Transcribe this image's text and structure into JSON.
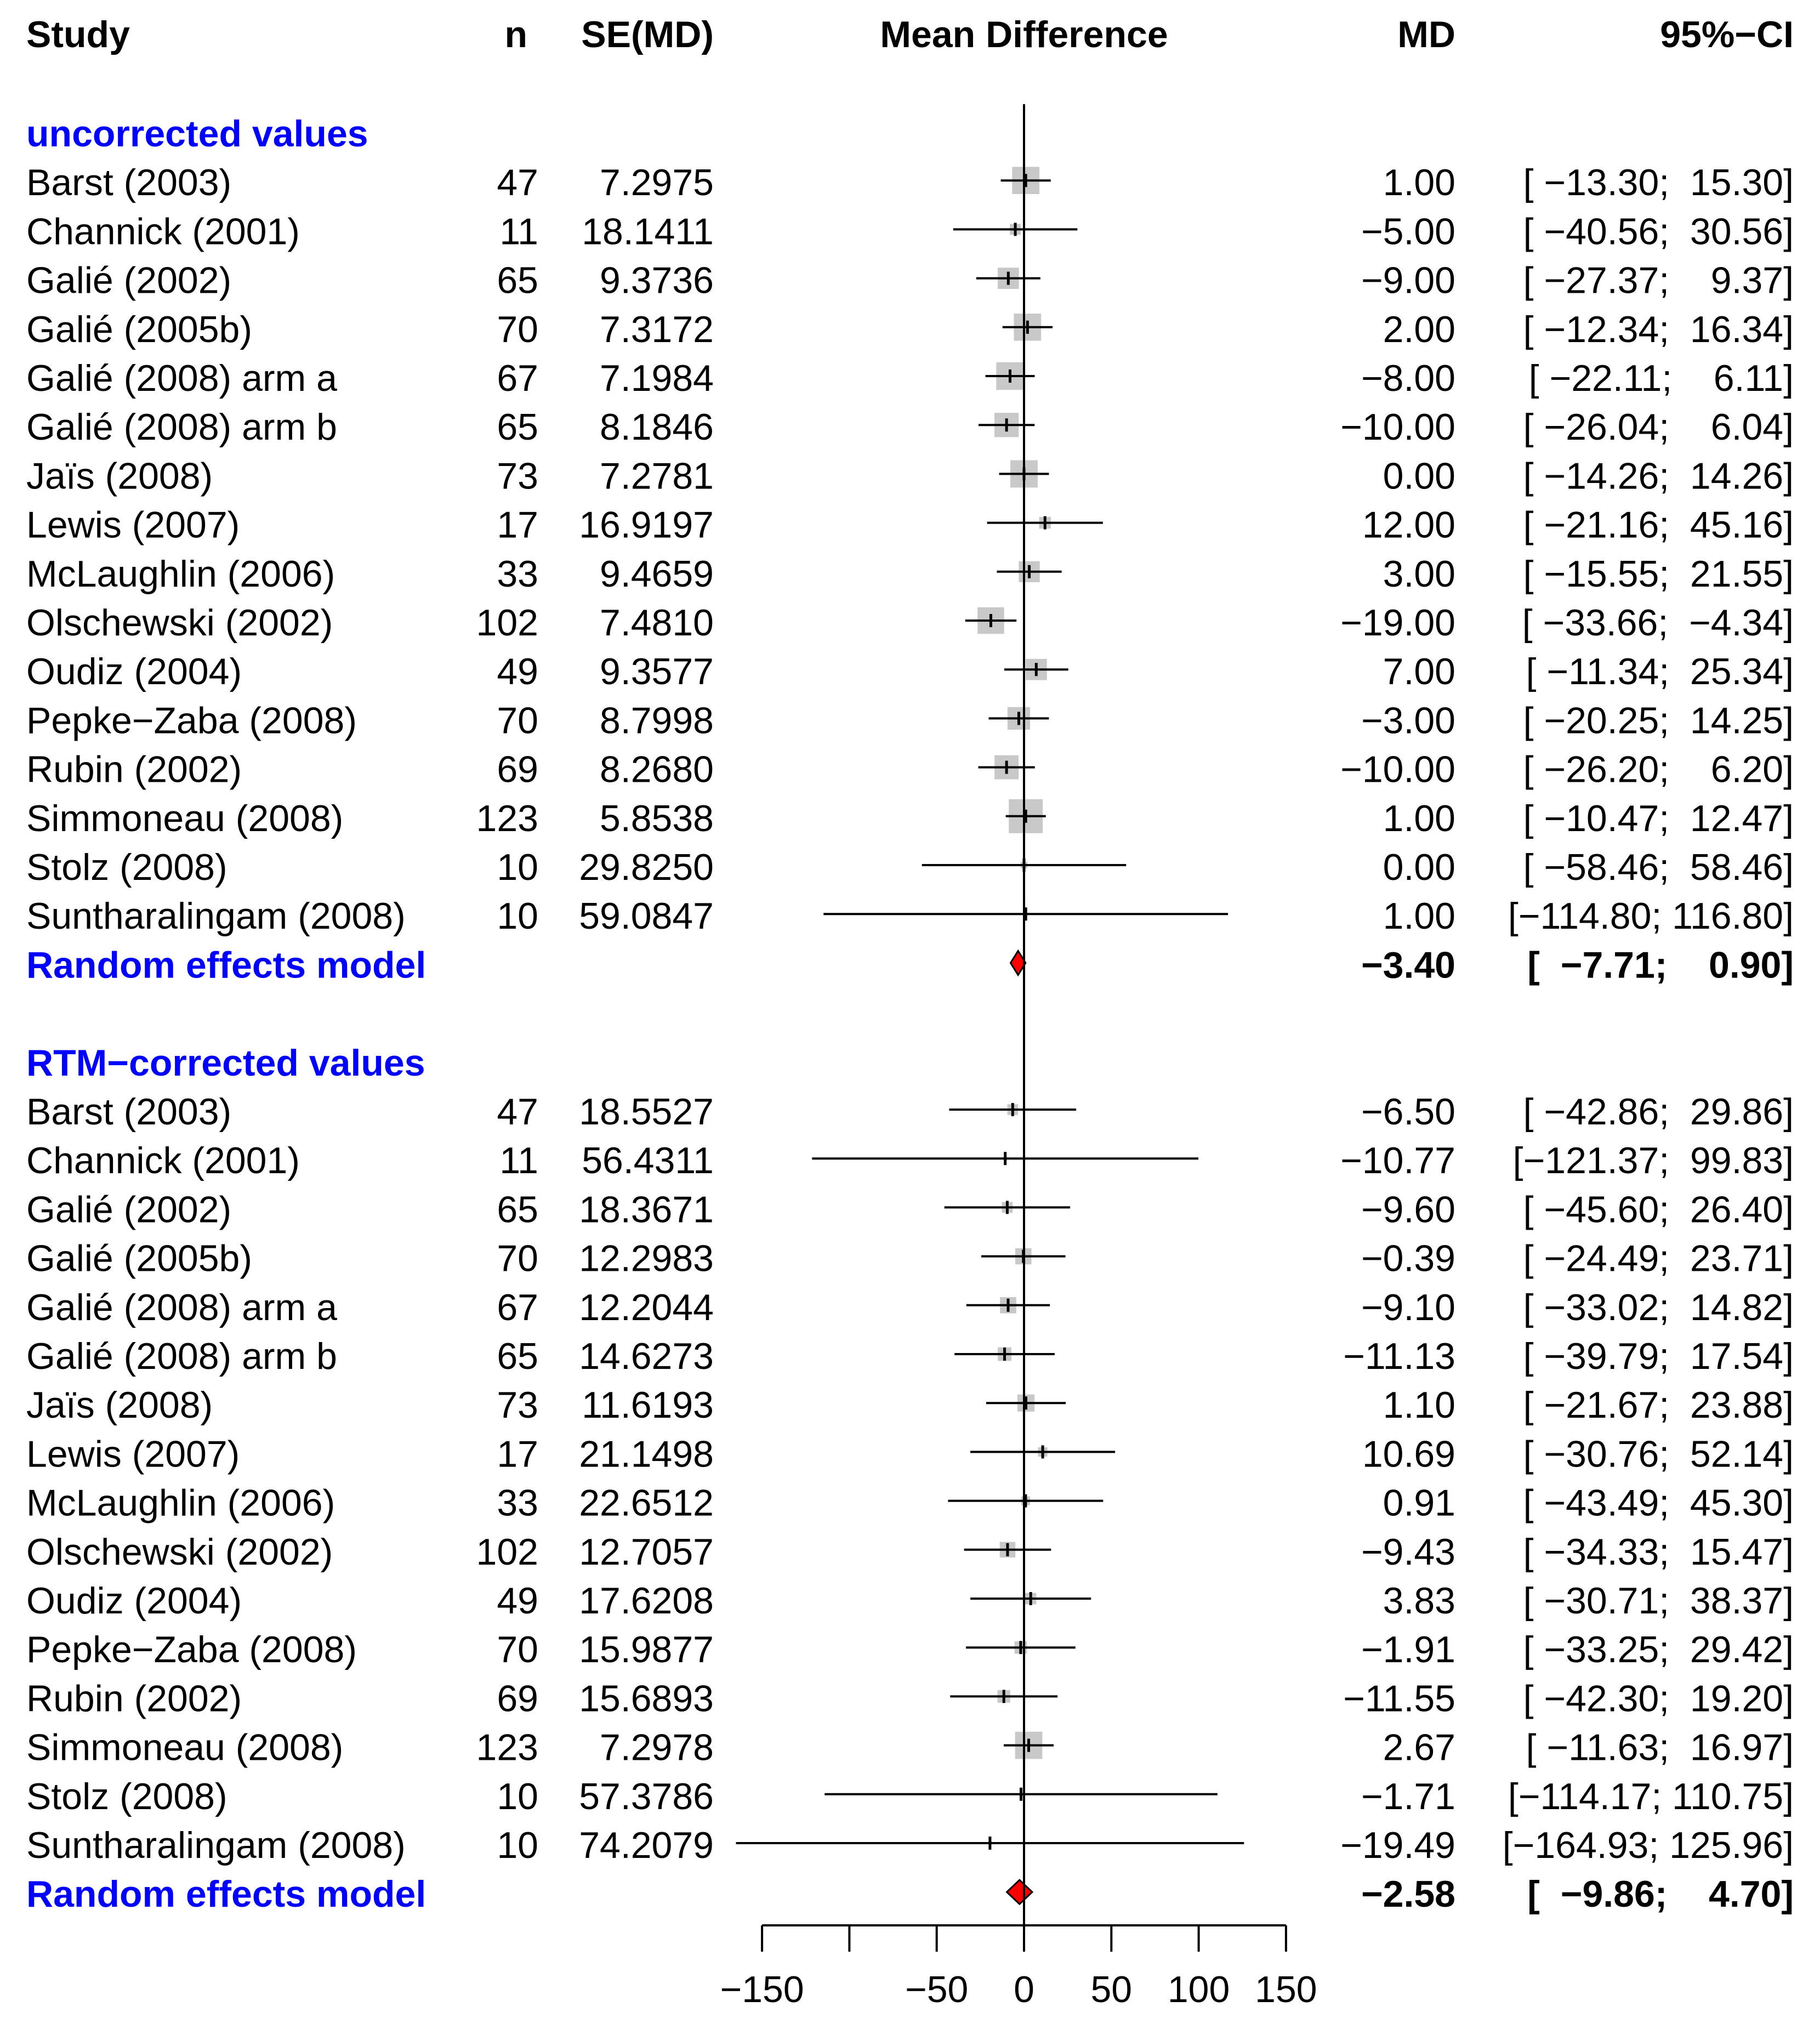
{
  "headers": {
    "study": "Study",
    "n": "n",
    "se": "SE(MD)",
    "plot": "Mean Difference",
    "md": "MD",
    "ci": "95%−CI"
  },
  "colors": {
    "subgroup_label": "#0000ff",
    "summary_diamond": "#ff0000",
    "square_fill": "#c8c8c8",
    "line": "#000000"
  },
  "chart_data": {
    "type": "forest",
    "title": "Mean Difference",
    "xlim": [
      -150,
      150
    ],
    "x_ticks": [
      -150,
      -100,
      -50,
      0,
      50,
      100,
      150
    ],
    "x_tick_labels": [
      "−150",
      "",
      "−50",
      "0",
      "50",
      "100",
      "150"
    ],
    "reference_line": 0,
    "groups": [
      {
        "label": "uncorrected values",
        "studies": [
          {
            "study": "Barst (2003)",
            "n": "47",
            "se": "7.2975",
            "md": 1.0,
            "lo": -13.3,
            "hi": 15.3,
            "md_text": "1.00",
            "ci_text": "[ −13.30;  15.30]"
          },
          {
            "study": "Channick (2001)",
            "n": "11",
            "se": "18.1411",
            "md": -5.0,
            "lo": -40.56,
            "hi": 30.56,
            "md_text": "−5.00",
            "ci_text": "[ −40.56;  30.56]"
          },
          {
            "study": "Galié (2002)",
            "n": "65",
            "se": "9.3736",
            "md": -9.0,
            "lo": -27.37,
            "hi": 9.37,
            "md_text": "−9.00",
            "ci_text": "[ −27.37;    9.37]"
          },
          {
            "study": "Galié (2005b)",
            "n": "70",
            "se": "7.3172",
            "md": 2.0,
            "lo": -12.34,
            "hi": 16.34,
            "md_text": "2.00",
            "ci_text": "[ −12.34;  16.34]"
          },
          {
            "study": "Galié (2008) arm a",
            "n": "67",
            "se": "7.1984",
            "md": -8.0,
            "lo": -22.11,
            "hi": 6.11,
            "md_text": "−8.00",
            "ci_text": "[ −22.11;    6.11]"
          },
          {
            "study": "Galié (2008) arm b",
            "n": "65",
            "se": "8.1846",
            "md": -10.0,
            "lo": -26.04,
            "hi": 6.04,
            "md_text": "−10.00",
            "ci_text": "[ −26.04;    6.04]"
          },
          {
            "study": "Jaïs (2008)",
            "n": "73",
            "se": "7.2781",
            "md": 0.0,
            "lo": -14.26,
            "hi": 14.26,
            "md_text": "0.00",
            "ci_text": "[ −14.26;  14.26]"
          },
          {
            "study": "Lewis (2007)",
            "n": "17",
            "se": "16.9197",
            "md": 12.0,
            "lo": -21.16,
            "hi": 45.16,
            "md_text": "12.00",
            "ci_text": "[ −21.16;  45.16]"
          },
          {
            "study": "McLaughlin (2006)",
            "n": "33",
            "se": "9.4659",
            "md": 3.0,
            "lo": -15.55,
            "hi": 21.55,
            "md_text": "3.00",
            "ci_text": "[ −15.55;  21.55]"
          },
          {
            "study": "Olschewski (2002)",
            "n": "102",
            "se": "7.4810",
            "md": -19.0,
            "lo": -33.66,
            "hi": -4.34,
            "md_text": "−19.00",
            "ci_text": "[ −33.66;  −4.34]"
          },
          {
            "study": "Oudiz (2004)",
            "n": "49",
            "se": "9.3577",
            "md": 7.0,
            "lo": -11.34,
            "hi": 25.34,
            "md_text": "7.00",
            "ci_text": "[ −11.34;  25.34]"
          },
          {
            "study": "Pepke−Zaba (2008)",
            "n": "70",
            "se": "8.7998",
            "md": -3.0,
            "lo": -20.25,
            "hi": 14.25,
            "md_text": "−3.00",
            "ci_text": "[ −20.25;  14.25]"
          },
          {
            "study": "Rubin (2002)",
            "n": "69",
            "se": "8.2680",
            "md": -10.0,
            "lo": -26.2,
            "hi": 6.2,
            "md_text": "−10.00",
            "ci_text": "[ −26.20;    6.20]"
          },
          {
            "study": "Simmoneau (2008)",
            "n": "123",
            "se": "5.8538",
            "md": 1.0,
            "lo": -10.47,
            "hi": 12.47,
            "md_text": "1.00",
            "ci_text": "[ −10.47;  12.47]"
          },
          {
            "study": "Stolz (2008)",
            "n": "10",
            "se": "29.8250",
            "md": 0.0,
            "lo": -58.46,
            "hi": 58.46,
            "md_text": "0.00",
            "ci_text": "[ −58.46;  58.46]"
          },
          {
            "study": "Suntharalingam (2008)",
            "n": "10",
            "se": "59.0847",
            "md": 1.0,
            "lo": -114.8,
            "hi": 116.8,
            "md_text": "1.00",
            "ci_text": "[−114.80; 116.80]"
          }
        ],
        "summary": {
          "label": "Random effects model",
          "md": -3.4,
          "lo": -7.71,
          "hi": 0.9,
          "md_text": "−3.40",
          "ci_text": "[  −7.71;    0.90]"
        }
      },
      {
        "label": "RTM−corrected values",
        "studies": [
          {
            "study": "Barst (2003)",
            "n": "47",
            "se": "18.5527",
            "md": -6.5,
            "lo": -42.86,
            "hi": 29.86,
            "md_text": "−6.50",
            "ci_text": "[ −42.86;  29.86]"
          },
          {
            "study": "Channick (2001)",
            "n": "11",
            "se": "56.4311",
            "md": -10.77,
            "lo": -121.37,
            "hi": 99.83,
            "md_text": "−10.77",
            "ci_text": "[−121.37;  99.83]"
          },
          {
            "study": "Galié (2002)",
            "n": "65",
            "se": "18.3671",
            "md": -9.6,
            "lo": -45.6,
            "hi": 26.4,
            "md_text": "−9.60",
            "ci_text": "[ −45.60;  26.40]"
          },
          {
            "study": "Galié (2005b)",
            "n": "70",
            "se": "12.2983",
            "md": -0.39,
            "lo": -24.49,
            "hi": 23.71,
            "md_text": "−0.39",
            "ci_text": "[ −24.49;  23.71]"
          },
          {
            "study": "Galié (2008) arm a",
            "n": "67",
            "se": "12.2044",
            "md": -9.1,
            "lo": -33.02,
            "hi": 14.82,
            "md_text": "−9.10",
            "ci_text": "[ −33.02;  14.82]"
          },
          {
            "study": "Galié (2008) arm b",
            "n": "65",
            "se": "14.6273",
            "md": -11.13,
            "lo": -39.79,
            "hi": 17.54,
            "md_text": "−11.13",
            "ci_text": "[ −39.79;  17.54]"
          },
          {
            "study": "Jaïs (2008)",
            "n": "73",
            "se": "11.6193",
            "md": 1.1,
            "lo": -21.67,
            "hi": 23.88,
            "md_text": "1.10",
            "ci_text": "[ −21.67;  23.88]"
          },
          {
            "study": "Lewis (2007)",
            "n": "17",
            "se": "21.1498",
            "md": 10.69,
            "lo": -30.76,
            "hi": 52.14,
            "md_text": "10.69",
            "ci_text": "[ −30.76;  52.14]"
          },
          {
            "study": "McLaughlin (2006)",
            "n": "33",
            "se": "22.6512",
            "md": 0.91,
            "lo": -43.49,
            "hi": 45.3,
            "md_text": "0.91",
            "ci_text": "[ −43.49;  45.30]"
          },
          {
            "study": "Olschewski (2002)",
            "n": "102",
            "se": "12.7057",
            "md": -9.43,
            "lo": -34.33,
            "hi": 15.47,
            "md_text": "−9.43",
            "ci_text": "[ −34.33;  15.47]"
          },
          {
            "study": "Oudiz (2004)",
            "n": "49",
            "se": "17.6208",
            "md": 3.83,
            "lo": -30.71,
            "hi": 38.37,
            "md_text": "3.83",
            "ci_text": "[ −30.71;  38.37]"
          },
          {
            "study": "Pepke−Zaba (2008)",
            "n": "70",
            "se": "15.9877",
            "md": -1.91,
            "lo": -33.25,
            "hi": 29.42,
            "md_text": "−1.91",
            "ci_text": "[ −33.25;  29.42]"
          },
          {
            "study": "Rubin (2002)",
            "n": "69",
            "se": "15.6893",
            "md": -11.55,
            "lo": -42.3,
            "hi": 19.2,
            "md_text": "−11.55",
            "ci_text": "[ −42.30;  19.20]"
          },
          {
            "study": "Simmoneau (2008)",
            "n": "123",
            "se": "7.2978",
            "md": 2.67,
            "lo": -11.63,
            "hi": 16.97,
            "md_text": "2.67",
            "ci_text": "[ −11.63;  16.97]"
          },
          {
            "study": "Stolz (2008)",
            "n": "10",
            "se": "57.3786",
            "md": -1.71,
            "lo": -114.17,
            "hi": 110.75,
            "md_text": "−1.71",
            "ci_text": "[−114.17; 110.75]"
          },
          {
            "study": "Suntharalingam (2008)",
            "n": "10",
            "se": "74.2079",
            "md": -19.49,
            "lo": -164.93,
            "hi": 125.96,
            "md_text": "−19.49",
            "ci_text": "[−164.93; 125.96]"
          }
        ],
        "summary": {
          "label": "Random effects model",
          "md": -2.58,
          "lo": -9.86,
          "hi": 4.7,
          "md_text": "−2.58",
          "ci_text": "[  −9.86;    4.70]"
        }
      }
    ]
  }
}
